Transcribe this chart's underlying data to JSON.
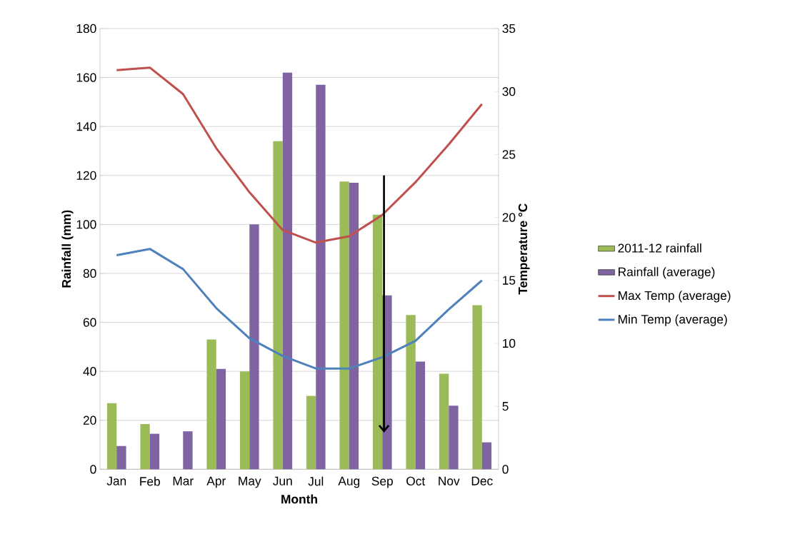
{
  "chart_data": {
    "type": "bar",
    "xlabel": "Month",
    "ylabel": "Rainfall (mm)",
    "y2label": "Temperature °C",
    "categories": [
      "Jan",
      "Feb",
      "Mar",
      "Apr",
      "May",
      "Jun",
      "Jul",
      "Aug",
      "Sep",
      "Oct",
      "Nov",
      "Dec"
    ],
    "series": [
      {
        "name": "2011-12 rainfall",
        "color": "#9bbb59",
        "values": [
          27,
          18.5,
          null,
          53,
          40,
          134,
          30,
          117.5,
          104,
          63,
          39,
          67
        ]
      },
      {
        "name": "Rainfall (average)",
        "color": "#8064a2",
        "values": [
          9.5,
          14.5,
          15.5,
          41,
          100,
          162,
          157,
          117,
          71,
          44,
          26,
          11
        ]
      },
      {
        "name": "Max Temp (average)",
        "type": "line",
        "axis": "y2",
        "color": "#c0504d",
        "values": [
          31.7,
          31.9,
          29.8,
          25.5,
          22,
          19,
          18,
          18.5,
          20.2,
          22.8,
          25.8,
          29
        ]
      },
      {
        "name": "Min Temp (average)",
        "type": "line",
        "axis": "y2",
        "color": "#4f81bd",
        "values": [
          17,
          17.5,
          15.9,
          12.8,
          10.4,
          9,
          8,
          8,
          8.9,
          10.2,
          12.7,
          15
        ]
      }
    ],
    "ylim": [
      0,
      180
    ],
    "yticks": [
      0,
      20,
      40,
      60,
      80,
      100,
      120,
      140,
      160,
      180
    ],
    "y2lim": [
      0,
      35
    ],
    "y2ticks": [
      0,
      5,
      10,
      15,
      20,
      25,
      30,
      35
    ],
    "grid": "y",
    "legend": "right",
    "marker": "none",
    "line_style": "solid"
  }
}
